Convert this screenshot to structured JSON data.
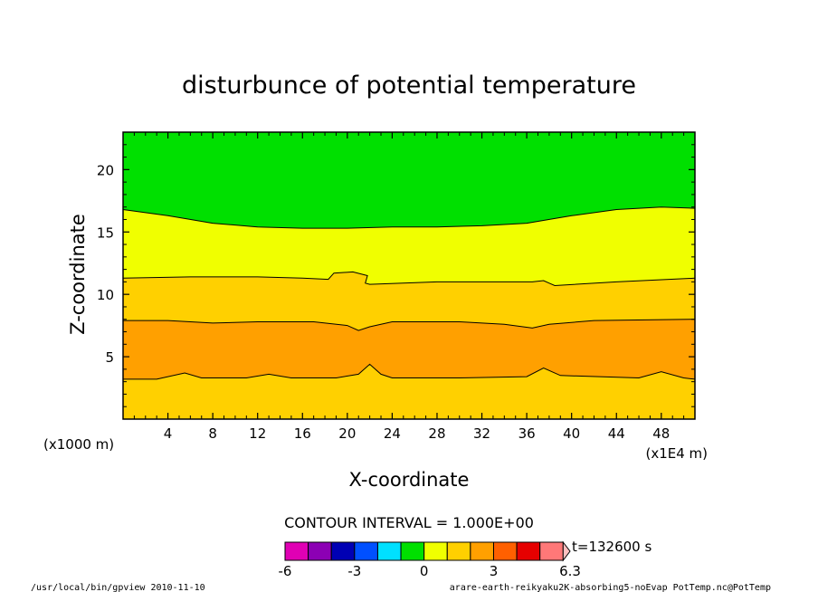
{
  "chart_data": {
    "type": "heatmap",
    "title": "disturbunce of potential temperature",
    "xlabel": "X-coordinate",
    "ylabel": "Z-coordinate",
    "x_unit": "(x1E4 m)",
    "y_unit": "(x1000 m)",
    "xlim": [
      0,
      51
    ],
    "ylim": [
      0,
      23
    ],
    "x_ticks": [
      4,
      8,
      12,
      16,
      20,
      24,
      28,
      32,
      36,
      40,
      44,
      48
    ],
    "y_ticks": [
      5,
      10,
      15,
      20
    ],
    "contour_interval_text": "CONTOUR INTERVAL = 1.000E+00",
    "time_text": "t=132600 s",
    "colorbar": {
      "levels": [
        -6,
        -5,
        -4,
        -3,
        -2,
        -1,
        0,
        1,
        2,
        3,
        4,
        5,
        6,
        6.3
      ],
      "labels": [
        "-6",
        "-3",
        "0",
        "3",
        "6.3"
      ],
      "label_values": [
        -6,
        -3,
        0,
        3,
        6.3
      ],
      "colors": [
        "#e000b4",
        "#8c00b4",
        "#0000b4",
        "#0050ff",
        "#00e0ff",
        "#00e000",
        "#f0ff00",
        "#ffd000",
        "#ffa000",
        "#ff6000",
        "#e60000",
        "#ff7878",
        "#ffc0c0"
      ]
    },
    "bands": [
      {
        "value_range": [
          -1,
          0
        ],
        "color": "#00e000"
      },
      {
        "value_range": [
          0,
          1
        ],
        "color": "#f0ff00"
      },
      {
        "value_range": [
          1,
          2
        ],
        "color": "#ffd000"
      },
      {
        "value_range": [
          2,
          3
        ],
        "color": "#ffa000"
      },
      {
        "value_range": [
          1,
          2
        ],
        "color": "#ffd000"
      }
    ],
    "contours": [
      {
        "name": "0",
        "points": [
          [
            0,
            16.8
          ],
          [
            4,
            16.3
          ],
          [
            8,
            15.7
          ],
          [
            12,
            15.4
          ],
          [
            16,
            15.3
          ],
          [
            20,
            15.3
          ],
          [
            24,
            15.4
          ],
          [
            28,
            15.4
          ],
          [
            32,
            15.5
          ],
          [
            36,
            15.7
          ],
          [
            40,
            16.3
          ],
          [
            44,
            16.8
          ],
          [
            48,
            17.0
          ],
          [
            51,
            16.9
          ]
        ]
      },
      {
        "name": "1",
        "points": [
          [
            0,
            11.3
          ],
          [
            6,
            11.4
          ],
          [
            12,
            11.4
          ],
          [
            16,
            11.3
          ],
          [
            18.3,
            11.2
          ],
          [
            18.8,
            11.7
          ],
          [
            20.5,
            11.8
          ],
          [
            21.8,
            11.5
          ],
          [
            21.6,
            10.9
          ],
          [
            22,
            10.8
          ],
          [
            28,
            11.0
          ],
          [
            34,
            11.0
          ],
          [
            36.5,
            11.0
          ],
          [
            37.5,
            11.1
          ],
          [
            38,
            10.9
          ],
          [
            38.5,
            10.7
          ],
          [
            44,
            11.0
          ],
          [
            51,
            11.3
          ]
        ]
      },
      {
        "name": "2",
        "points": [
          [
            0,
            7.9
          ],
          [
            4,
            7.9
          ],
          [
            8,
            7.7
          ],
          [
            12,
            7.8
          ],
          [
            17,
            7.8
          ],
          [
            20,
            7.5
          ],
          [
            21,
            7.1
          ],
          [
            22,
            7.4
          ],
          [
            24,
            7.8
          ],
          [
            30,
            7.8
          ],
          [
            34,
            7.6
          ],
          [
            36.5,
            7.3
          ],
          [
            38,
            7.6
          ],
          [
            42,
            7.9
          ],
          [
            51,
            8.0
          ]
        ]
      },
      {
        "name": "3",
        "points": [
          [
            0,
            3.2
          ],
          [
            3,
            3.2
          ],
          [
            5.5,
            3.7
          ],
          [
            7,
            3.3
          ],
          [
            11,
            3.3
          ],
          [
            13,
            3.6
          ],
          [
            15,
            3.3
          ],
          [
            19,
            3.3
          ],
          [
            21,
            3.6
          ],
          [
            22,
            4.4
          ],
          [
            23,
            3.6
          ],
          [
            24,
            3.3
          ],
          [
            30,
            3.3
          ],
          [
            36,
            3.4
          ],
          [
            37.5,
            4.1
          ],
          [
            39,
            3.5
          ],
          [
            46,
            3.3
          ],
          [
            48,
            3.8
          ],
          [
            50,
            3.3
          ],
          [
            51,
            3.2
          ]
        ]
      }
    ]
  },
  "footer": {
    "left": "/usr/local/bin/gpview  2010-11-10",
    "right": "arare-earth-reikyaku2K-absorbing5-noEvap_PotTemp.nc@PotTemp"
  }
}
